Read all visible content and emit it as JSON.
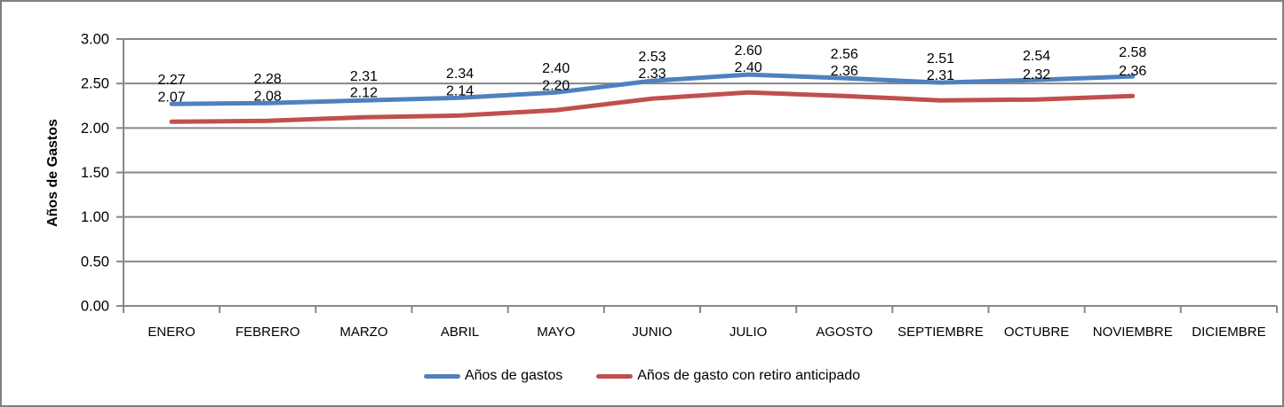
{
  "chart_data": {
    "type": "line",
    "title": "",
    "xlabel": "",
    "ylabel": "Años de Gastos",
    "categories": [
      "ENERO",
      "FEBRERO",
      "MARZO",
      "ABRIL",
      "MAYO",
      "JUNIO",
      "JULIO",
      "AGOSTO",
      "SEPTIEMBRE",
      "OCTUBRE",
      "NOVIEMBRE",
      "DICIEMBRE"
    ],
    "series": [
      {
        "name": "Años de gastos",
        "color": "#4F81BD",
        "values": [
          2.27,
          2.28,
          2.31,
          2.34,
          2.4,
          2.53,
          2.6,
          2.56,
          2.51,
          2.54,
          2.58
        ],
        "labels": [
          "2.27",
          "2.28",
          "2.31",
          "2.34",
          "2.40",
          "2.53",
          "2.60",
          "2.56",
          "2.51",
          "2.54",
          "2.58"
        ]
      },
      {
        "name": "Años de gasto con retiro anticipado",
        "color": "#C0504D",
        "values": [
          2.07,
          2.08,
          2.12,
          2.14,
          2.2,
          2.33,
          2.4,
          2.36,
          2.31,
          2.32,
          2.36
        ],
        "labels": [
          "2.07",
          "2.08",
          "2.12",
          "2.14",
          "2.20",
          "2.33",
          "2.40",
          "2.36",
          "2.31",
          "2.32",
          "2.36"
        ]
      }
    ],
    "ylim": [
      0,
      3
    ],
    "ytick_step": 0.5,
    "ytick_labels": [
      "0.00",
      "0.50",
      "1.00",
      "1.50",
      "2.00",
      "2.50",
      "3.00"
    ],
    "grid": true,
    "legend_position": "bottom",
    "colors": {
      "axis": "#878787",
      "gridline": "#878787",
      "text": "#000000",
      "frame_border": "#7F7F7F",
      "background": "#FFFFFF"
    }
  }
}
